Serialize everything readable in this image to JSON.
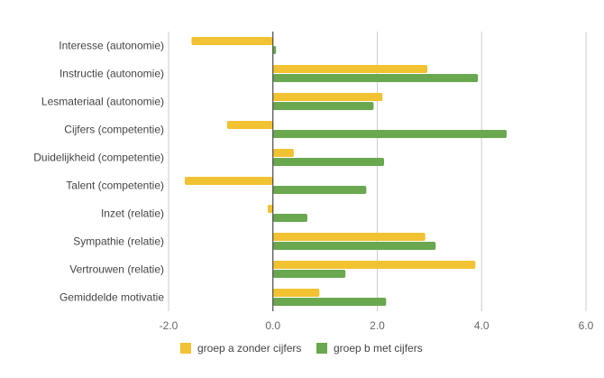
{
  "chart_data": {
    "type": "bar",
    "orientation": "horizontal",
    "title": "",
    "xlabel": "",
    "ylabel": "",
    "xlim": [
      -2.0,
      6.0
    ],
    "xticks": [
      "-2.0",
      "0.0",
      "2.0",
      "4.0",
      "6.0"
    ],
    "grid": true,
    "legend_position": "bottom",
    "categories": [
      "Interesse (autonomie)",
      "Instructie (autonomie)",
      "Lesmateriaal (autonomie)",
      "Cijfers (competentie)",
      "Duidelijkheid (competentie)",
      "Talent (competentie)",
      "Inzet (relatie)",
      "Sympathie (relatie)",
      "Vertrouwen (relatie)",
      "Gemiddelde motivatie"
    ],
    "series": [
      {
        "name": "groep a zonder cijfers",
        "color": "#f1c232",
        "values": [
          -1.56,
          2.96,
          2.1,
          -0.88,
          0.4,
          -1.69,
          -0.1,
          2.92,
          3.88,
          0.89
        ]
      },
      {
        "name": "groep b met cijfers",
        "color": "#6aa84f",
        "values": [
          0.06,
          3.93,
          1.93,
          4.48,
          2.13,
          1.79,
          0.66,
          3.12,
          1.39,
          2.17
        ]
      }
    ]
  }
}
